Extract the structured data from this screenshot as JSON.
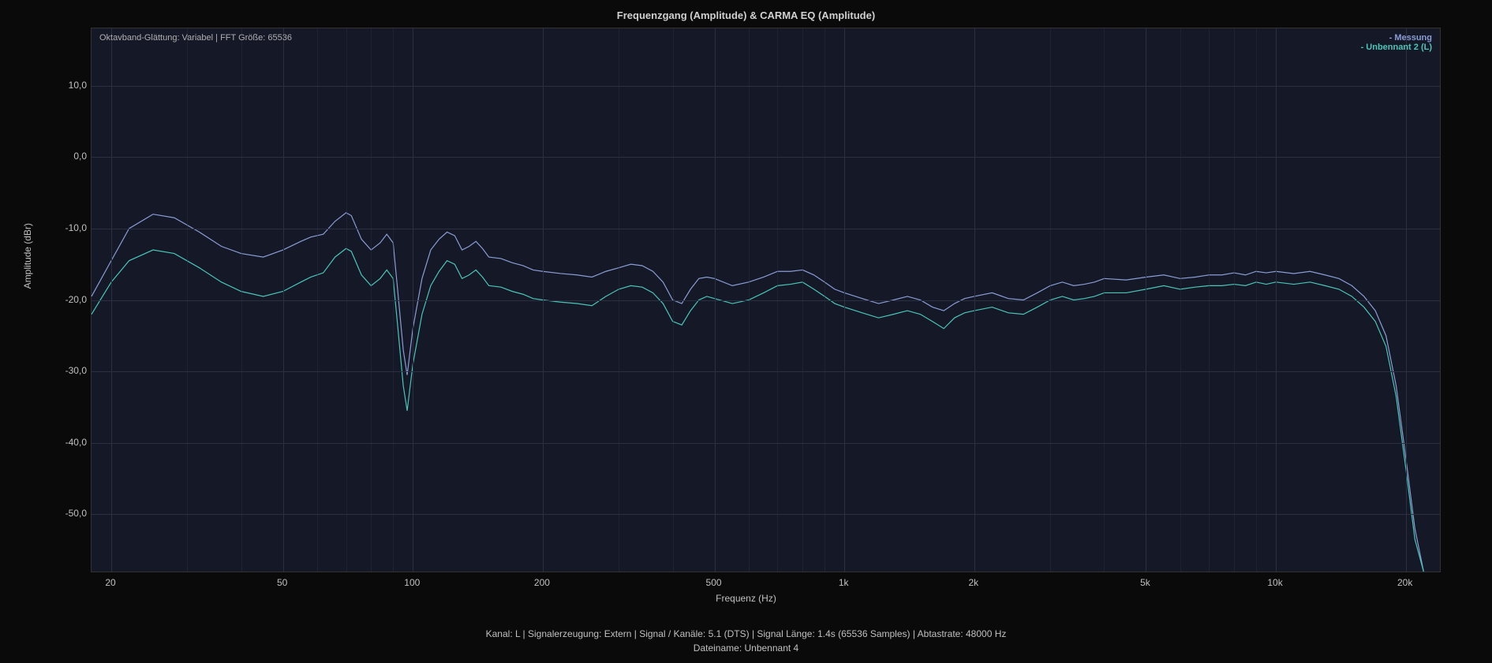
{
  "title": "Frequenzgang (Amplitude) & CARMA EQ (Amplitude)",
  "info_label": "Oktavband-Glättung: Variabel | FFT Größe: 65536",
  "legend": {
    "series1": "- Messung",
    "series2": "- Unbennant 2 (L)"
  },
  "y_axis": {
    "label": "Amplitude (dBr)",
    "min": -58,
    "max": 18,
    "ticks": [
      10.0,
      0.0,
      -10.0,
      -20.0,
      -30.0,
      -40.0,
      -50.0
    ],
    "tick_labels": [
      "10,0",
      "0,0",
      "-10,0",
      "-20,0",
      "-30,0",
      "-40,0",
      "-50,0"
    ]
  },
  "x_axis": {
    "label": "Frequenz (Hz)",
    "min_hz": 18,
    "max_hz": 24000,
    "major_ticks": [
      20,
      50,
      100,
      200,
      500,
      1000,
      2000,
      5000,
      10000,
      20000
    ],
    "major_labels": [
      "20",
      "50",
      "100",
      "200",
      "500",
      "1k",
      "2k",
      "5k",
      "10k",
      "20k"
    ],
    "minor_ticks": [
      30,
      40,
      60,
      70,
      80,
      90,
      300,
      400,
      600,
      700,
      800,
      900,
      3000,
      4000,
      6000,
      7000,
      8000,
      9000
    ]
  },
  "chart": {
    "type": "line",
    "scale_x": "log",
    "scale_y": "linear",
    "background_color": "#141827",
    "grid_color": "#2a2f42",
    "series": [
      {
        "name": "Messung",
        "color": "#8a9dd4",
        "width": 1.2,
        "data": [
          [
            18,
            -19.5
          ],
          [
            20,
            -14.5
          ],
          [
            22,
            -10.0
          ],
          [
            25,
            -8.0
          ],
          [
            28,
            -8.5
          ],
          [
            32,
            -10.5
          ],
          [
            36,
            -12.5
          ],
          [
            40,
            -13.5
          ],
          [
            45,
            -14.0
          ],
          [
            50,
            -13.0
          ],
          [
            55,
            -11.8
          ],
          [
            58,
            -11.2
          ],
          [
            62,
            -10.8
          ],
          [
            66,
            -9.0
          ],
          [
            70,
            -7.8
          ],
          [
            72,
            -8.2
          ],
          [
            76,
            -11.5
          ],
          [
            80,
            -13.0
          ],
          [
            84,
            -12.0
          ],
          [
            87,
            -10.8
          ],
          [
            90,
            -12.0
          ],
          [
            92,
            -18.0
          ],
          [
            95,
            -27.0
          ],
          [
            97,
            -30.5
          ],
          [
            100,
            -24.0
          ],
          [
            105,
            -17.0
          ],
          [
            110,
            -13.0
          ],
          [
            115,
            -11.5
          ],
          [
            120,
            -10.5
          ],
          [
            125,
            -11.0
          ],
          [
            130,
            -13.0
          ],
          [
            135,
            -12.5
          ],
          [
            140,
            -11.8
          ],
          [
            145,
            -12.8
          ],
          [
            150,
            -14.0
          ],
          [
            160,
            -14.2
          ],
          [
            170,
            -14.8
          ],
          [
            180,
            -15.2
          ],
          [
            190,
            -15.8
          ],
          [
            200,
            -16.0
          ],
          [
            220,
            -16.3
          ],
          [
            240,
            -16.5
          ],
          [
            260,
            -16.8
          ],
          [
            280,
            -16.0
          ],
          [
            300,
            -15.5
          ],
          [
            320,
            -15.0
          ],
          [
            340,
            -15.2
          ],
          [
            360,
            -16.0
          ],
          [
            380,
            -17.5
          ],
          [
            400,
            -20.0
          ],
          [
            420,
            -20.5
          ],
          [
            440,
            -18.5
          ],
          [
            460,
            -17.0
          ],
          [
            480,
            -16.8
          ],
          [
            500,
            -17.0
          ],
          [
            550,
            -18.0
          ],
          [
            600,
            -17.5
          ],
          [
            650,
            -16.8
          ],
          [
            700,
            -16.0
          ],
          [
            750,
            -16.0
          ],
          [
            800,
            -15.8
          ],
          [
            850,
            -16.5
          ],
          [
            900,
            -17.5
          ],
          [
            950,
            -18.5
          ],
          [
            1000,
            -19.0
          ],
          [
            1100,
            -19.8
          ],
          [
            1200,
            -20.5
          ],
          [
            1300,
            -20.0
          ],
          [
            1400,
            -19.5
          ],
          [
            1500,
            -20.0
          ],
          [
            1600,
            -21.0
          ],
          [
            1700,
            -21.5
          ],
          [
            1800,
            -20.5
          ],
          [
            1900,
            -19.8
          ],
          [
            2000,
            -19.5
          ],
          [
            2200,
            -19.0
          ],
          [
            2400,
            -19.8
          ],
          [
            2600,
            -20.0
          ],
          [
            2800,
            -19.0
          ],
          [
            3000,
            -18.0
          ],
          [
            3200,
            -17.5
          ],
          [
            3400,
            -18.0
          ],
          [
            3600,
            -17.8
          ],
          [
            3800,
            -17.5
          ],
          [
            4000,
            -17.0
          ],
          [
            4500,
            -17.2
          ],
          [
            5000,
            -16.8
          ],
          [
            5500,
            -16.5
          ],
          [
            6000,
            -17.0
          ],
          [
            6500,
            -16.8
          ],
          [
            7000,
            -16.5
          ],
          [
            7500,
            -16.5
          ],
          [
            8000,
            -16.2
          ],
          [
            8500,
            -16.5
          ],
          [
            9000,
            -16.0
          ],
          [
            9500,
            -16.2
          ],
          [
            10000,
            -16.0
          ],
          [
            11000,
            -16.3
          ],
          [
            12000,
            -16.0
          ],
          [
            13000,
            -16.5
          ],
          [
            14000,
            -17.0
          ],
          [
            15000,
            -18.0
          ],
          [
            16000,
            -19.5
          ],
          [
            17000,
            -21.5
          ],
          [
            18000,
            -25.0
          ],
          [
            19000,
            -32.0
          ],
          [
            20000,
            -42.0
          ],
          [
            21000,
            -52.0
          ],
          [
            22000,
            -58.0
          ]
        ]
      },
      {
        "name": "Unbennant 2 (L)",
        "color": "#4bc5b8",
        "width": 1.2,
        "data": [
          [
            18,
            -22.0
          ],
          [
            20,
            -17.5
          ],
          [
            22,
            -14.5
          ],
          [
            25,
            -13.0
          ],
          [
            28,
            -13.5
          ],
          [
            32,
            -15.5
          ],
          [
            36,
            -17.5
          ],
          [
            40,
            -18.8
          ],
          [
            45,
            -19.5
          ],
          [
            50,
            -18.8
          ],
          [
            55,
            -17.5
          ],
          [
            58,
            -16.8
          ],
          [
            62,
            -16.2
          ],
          [
            66,
            -14.0
          ],
          [
            70,
            -12.8
          ],
          [
            72,
            -13.2
          ],
          [
            76,
            -16.5
          ],
          [
            80,
            -18.0
          ],
          [
            84,
            -17.0
          ],
          [
            87,
            -15.8
          ],
          [
            90,
            -17.0
          ],
          [
            92,
            -23.0
          ],
          [
            95,
            -32.0
          ],
          [
            97,
            -35.5
          ],
          [
            100,
            -29.0
          ],
          [
            105,
            -22.0
          ],
          [
            110,
            -18.0
          ],
          [
            115,
            -16.0
          ],
          [
            120,
            -14.5
          ],
          [
            125,
            -15.0
          ],
          [
            130,
            -17.0
          ],
          [
            135,
            -16.5
          ],
          [
            140,
            -15.8
          ],
          [
            145,
            -16.8
          ],
          [
            150,
            -18.0
          ],
          [
            160,
            -18.2
          ],
          [
            170,
            -18.8
          ],
          [
            180,
            -19.2
          ],
          [
            190,
            -19.8
          ],
          [
            200,
            -20.0
          ],
          [
            220,
            -20.3
          ],
          [
            240,
            -20.5
          ],
          [
            260,
            -20.8
          ],
          [
            280,
            -19.5
          ],
          [
            300,
            -18.5
          ],
          [
            320,
            -18.0
          ],
          [
            340,
            -18.2
          ],
          [
            360,
            -19.0
          ],
          [
            380,
            -20.5
          ],
          [
            400,
            -23.0
          ],
          [
            420,
            -23.5
          ],
          [
            440,
            -21.5
          ],
          [
            460,
            -20.0
          ],
          [
            480,
            -19.5
          ],
          [
            500,
            -19.8
          ],
          [
            550,
            -20.5
          ],
          [
            600,
            -20.0
          ],
          [
            650,
            -19.0
          ],
          [
            700,
            -18.0
          ],
          [
            750,
            -17.8
          ],
          [
            800,
            -17.5
          ],
          [
            850,
            -18.5
          ],
          [
            900,
            -19.5
          ],
          [
            950,
            -20.5
          ],
          [
            1000,
            -21.0
          ],
          [
            1100,
            -21.8
          ],
          [
            1200,
            -22.5
          ],
          [
            1300,
            -22.0
          ],
          [
            1400,
            -21.5
          ],
          [
            1500,
            -22.0
          ],
          [
            1600,
            -23.0
          ],
          [
            1700,
            -24.0
          ],
          [
            1800,
            -22.5
          ],
          [
            1900,
            -21.8
          ],
          [
            2000,
            -21.5
          ],
          [
            2200,
            -21.0
          ],
          [
            2400,
            -21.8
          ],
          [
            2600,
            -22.0
          ],
          [
            2800,
            -21.0
          ],
          [
            3000,
            -20.0
          ],
          [
            3200,
            -19.5
          ],
          [
            3400,
            -20.0
          ],
          [
            3600,
            -19.8
          ],
          [
            3800,
            -19.5
          ],
          [
            4000,
            -19.0
          ],
          [
            4500,
            -19.0
          ],
          [
            5000,
            -18.5
          ],
          [
            5500,
            -18.0
          ],
          [
            6000,
            -18.5
          ],
          [
            6500,
            -18.2
          ],
          [
            7000,
            -18.0
          ],
          [
            7500,
            -18.0
          ],
          [
            8000,
            -17.8
          ],
          [
            8500,
            -18.0
          ],
          [
            9000,
            -17.5
          ],
          [
            9500,
            -17.8
          ],
          [
            10000,
            -17.5
          ],
          [
            11000,
            -17.8
          ],
          [
            12000,
            -17.5
          ],
          [
            13000,
            -18.0
          ],
          [
            14000,
            -18.5
          ],
          [
            15000,
            -19.5
          ],
          [
            16000,
            -21.0
          ],
          [
            17000,
            -23.0
          ],
          [
            18000,
            -26.5
          ],
          [
            19000,
            -33.5
          ],
          [
            20000,
            -43.5
          ],
          [
            21000,
            -53.5
          ],
          [
            22000,
            -58.0
          ]
        ]
      }
    ]
  },
  "footer": {
    "line1": "Kanal: L   |   Signalerzeugung: Extern    |   Signal / Kanäle: 5.1 (DTS)   |   Signal Länge: 1.4s (65536 Samples)   |   Abtastrate: 48000 Hz",
    "line2": "Dateiname: Unbennant 4"
  }
}
